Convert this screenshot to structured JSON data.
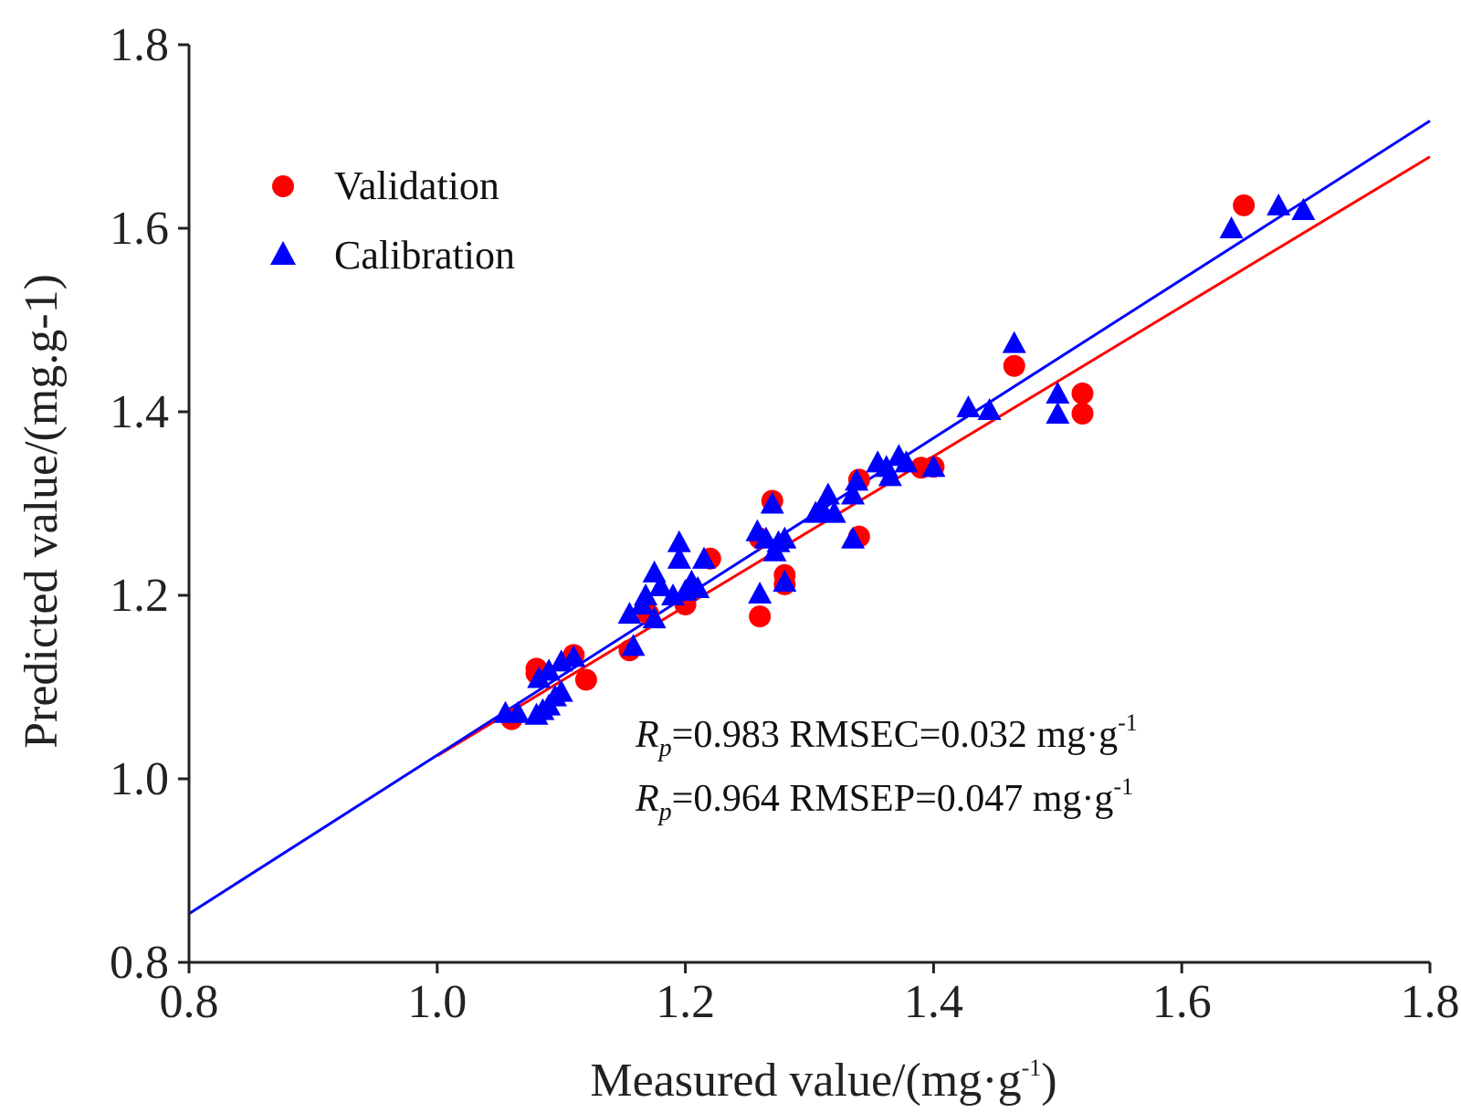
{
  "chart_data": {
    "type": "scatter",
    "title": "",
    "xlabel": "Measured value/(mg·g",
    "xlabel_sup": "-1",
    "xlabel_tail": ")",
    "ylabel": "Predicted value/(mg.g-1)",
    "xlim": [
      0.8,
      1.8
    ],
    "ylim": [
      0.8,
      1.8
    ],
    "xticks": [
      "0.8",
      "1.0",
      "1.2",
      "1.4",
      "1.6",
      "1.8"
    ],
    "yticks": [
      "0.8",
      "1.0",
      "1.2",
      "1.4",
      "1.6",
      "1.8"
    ],
    "grid": false,
    "legend_position": "top-left",
    "colors": {
      "validation": "#ff0000",
      "calibration": "#0000ff",
      "axis": "#222222"
    },
    "series": [
      {
        "name": "Validation",
        "marker": "circle",
        "color": "#ff0000",
        "points": [
          [
            1.06,
            1.065
          ],
          [
            1.08,
            1.115
          ],
          [
            1.08,
            1.12
          ],
          [
            1.11,
            1.135
          ],
          [
            1.12,
            1.108
          ],
          [
            1.155,
            1.14
          ],
          [
            1.17,
            1.18
          ],
          [
            1.2,
            1.19
          ],
          [
            1.22,
            1.24
          ],
          [
            1.26,
            1.262
          ],
          [
            1.26,
            1.177
          ],
          [
            1.27,
            1.303
          ],
          [
            1.28,
            1.222
          ],
          [
            1.28,
            1.212
          ],
          [
            1.34,
            1.326
          ],
          [
            1.34,
            1.264
          ],
          [
            1.39,
            1.339
          ],
          [
            1.4,
            1.34
          ],
          [
            1.465,
            1.45
          ],
          [
            1.52,
            1.42
          ],
          [
            1.52,
            1.398
          ],
          [
            1.65,
            1.625
          ]
        ]
      },
      {
        "name": "Calibration",
        "marker": "triangle",
        "color": "#0000ff",
        "points": [
          [
            1.055,
            1.072
          ],
          [
            1.065,
            1.072
          ],
          [
            1.08,
            1.07
          ],
          [
            1.085,
            1.075
          ],
          [
            1.09,
            1.08
          ],
          [
            1.095,
            1.09
          ],
          [
            1.1,
            1.095
          ],
          [
            1.082,
            1.11
          ],
          [
            1.09,
            1.118
          ],
          [
            1.1,
            1.128
          ],
          [
            1.11,
            1.133
          ],
          [
            1.155,
            1.18
          ],
          [
            1.158,
            1.145
          ],
          [
            1.165,
            1.19
          ],
          [
            1.168,
            1.2
          ],
          [
            1.175,
            1.175
          ],
          [
            1.175,
            1.225
          ],
          [
            1.18,
            1.21
          ],
          [
            1.19,
            1.2
          ],
          [
            1.195,
            1.24
          ],
          [
            1.195,
            1.258
          ],
          [
            1.2,
            1.205
          ],
          [
            1.205,
            1.215
          ],
          [
            1.21,
            1.208
          ],
          [
            1.215,
            1.24
          ],
          [
            1.258,
            1.27
          ],
          [
            1.26,
            1.202
          ],
          [
            1.265,
            1.262
          ],
          [
            1.27,
            1.3
          ],
          [
            1.272,
            1.248
          ],
          [
            1.275,
            1.258
          ],
          [
            1.28,
            1.262
          ],
          [
            1.28,
            1.215
          ],
          [
            1.305,
            1.29
          ],
          [
            1.31,
            1.295
          ],
          [
            1.315,
            1.31
          ],
          [
            1.32,
            1.29
          ],
          [
            1.335,
            1.262
          ],
          [
            1.335,
            1.31
          ],
          [
            1.338,
            1.325
          ],
          [
            1.355,
            1.345
          ],
          [
            1.362,
            1.34
          ],
          [
            1.365,
            1.33
          ],
          [
            1.372,
            1.352
          ],
          [
            1.378,
            1.345
          ],
          [
            1.4,
            1.34
          ],
          [
            1.428,
            1.405
          ],
          [
            1.445,
            1.402
          ],
          [
            1.465,
            1.475
          ],
          [
            1.5,
            1.42
          ],
          [
            1.5,
            1.398
          ],
          [
            1.64,
            1.6
          ],
          [
            1.678,
            1.625
          ],
          [
            1.698,
            1.62
          ]
        ]
      }
    ],
    "fit_lines": [
      {
        "name": "Validation fit",
        "color": "#ff0000",
        "x": [
          1.0,
          1.8
        ],
        "y": [
          1.025,
          1.678
        ]
      },
      {
        "name": "Calibration fit",
        "color": "#0000ff",
        "x": [
          0.8,
          1.8
        ],
        "y": [
          0.853,
          1.717
        ]
      }
    ],
    "annotations": [
      {
        "r_symbol": "R",
        "r_sub": "p",
        "text": "=0.983  RMSEC=0.032 mg·g",
        "sup": "-1"
      },
      {
        "r_symbol": "R",
        "r_sub": "p",
        "text": "=0.964  RMSEP=0.047 mg·g",
        "sup": "-1"
      }
    ]
  }
}
